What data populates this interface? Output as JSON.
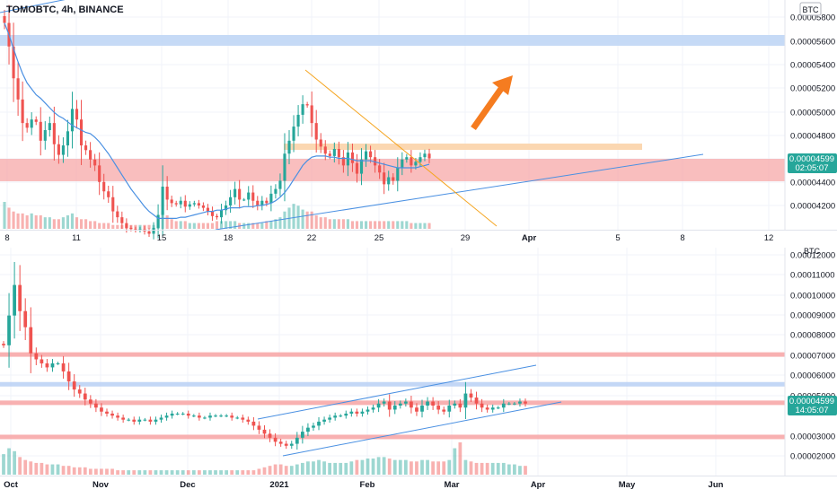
{
  "header": {
    "symbol_label": "TOMOBTC, 4h, BINANCE"
  },
  "top_panel": {
    "unit_badge": "BTC",
    "price_axis": [
      "0.00005800",
      "0.00005600",
      "0.00005400",
      "0.00005200",
      "0.00005000",
      "0.00004800",
      "0.00004600",
      "0.00004400",
      "0.00004200"
    ],
    "time_axis": [
      "8",
      "11",
      "15",
      "18",
      "22",
      "25",
      "29",
      "Apr",
      "5",
      "8",
      "12"
    ],
    "last_price": "0.00004599",
    "countdown": "02:05:07"
  },
  "bottom_panel": {
    "unit_badge": "BTC",
    "price_axis": [
      "0.00012000",
      "0.00011000",
      "0.00010000",
      "0.00009000",
      "0.00008000",
      "0.00007000",
      "0.00006000",
      "0.00005000",
      "0.00003000",
      "0.00002000"
    ],
    "time_axis": [
      "Oct",
      "Nov",
      "Dec",
      "2021",
      "Feb",
      "Mar",
      "Apr",
      "May",
      "Jun"
    ],
    "last_price": "0.00004599",
    "countdown": "14:05:07"
  },
  "colors": {
    "up": "#26a69a",
    "down": "#ef5350",
    "sma": "#4a90e2",
    "resistance_band": "#bcd3f5",
    "support_band": "#f7a8a8",
    "orange_band": "#fbd5ad",
    "orange_arrow": "#f57c20",
    "price_tag": "#26a69a"
  },
  "chart_data": [
    {
      "type": "candlestick",
      "title": "TOMOBTC, 4h, BINANCE",
      "x_tick_labels": [
        "8",
        "11",
        "15",
        "18",
        "22",
        "25",
        "29",
        "Apr",
        "5",
        "8",
        "12"
      ],
      "ylim": [
        4e-05,
        5.95e-05
      ],
      "zones": [
        {
          "kind": "resistance",
          "from": 5.61e-05,
          "to": 5.7e-05
        },
        {
          "kind": "support",
          "from": 4.41e-05,
          "to": 4.61e-05
        },
        {
          "kind": "orange",
          "from": 4.7e-05,
          "to": 4.75e-05
        }
      ],
      "close": [
        5.75e-05,
        5.55e-05,
        5.28e-05,
        5.1e-05,
        4.9e-05,
        4.86e-05,
        4.93e-05,
        4.91e-05,
        4.75e-05,
        4.84e-05,
        4.9e-05,
        4.72e-05,
        4.63e-05,
        4.71e-05,
        4.83e-05,
        5.02e-05,
        4.93e-05,
        4.71e-05,
        4.67e-05,
        4.59e-05,
        4.54e-05,
        4.4e-05,
        4.32e-05,
        4.27e-05,
        4.15e-05,
        4.1e-05,
        4.05e-05,
        4.01e-05,
        4e-05,
        3.99e-05,
        4e-05,
        3.98e-05,
        3.96e-05,
        4.01e-05,
        4.12e-05,
        4.36e-05,
        4.25e-05,
        4.22e-05,
        4.21e-05,
        4.24e-05,
        4.19e-05,
        4.21e-05,
        4.22e-05,
        4.2e-05,
        4.18e-05,
        4.15e-05,
        4.11e-05,
        4.1e-05,
        4.16e-05,
        4.2e-05,
        4.27e-05,
        4.34e-05,
        4.25e-05,
        4.25e-05,
        4.31e-05,
        4.24e-05,
        4.2e-05,
        4.24e-05,
        4.22e-05,
        4.3e-05,
        4.34e-05,
        4.41e-05,
        4.64e-05,
        4.75e-05,
        4.87e-05,
        4.97e-05,
        5.06e-05,
        5.05e-05,
        4.9e-05,
        4.76e-05,
        4.7e-05,
        4.64e-05,
        4.62e-05,
        4.68e-05,
        4.61e-05,
        4.54e-05,
        4.65e-05,
        4.56e-05,
        4.47e-05,
        4.59e-05,
        4.66e-05,
        4.61e-05,
        4.54e-05,
        4.48e-05,
        4.38e-05,
        4.44e-05,
        4.41e-05,
        4.52e-05,
        4.59e-05,
        4.61e-05,
        4.54e-05,
        4.57e-05,
        4.61e-05,
        4.64e-05,
        4.6e-05
      ],
      "volume": [
        14,
        11,
        9,
        8,
        8,
        7,
        8,
        7,
        7,
        6,
        6,
        5,
        5,
        6,
        7,
        8,
        6,
        5,
        5,
        4,
        4,
        3,
        3,
        3,
        2,
        2,
        2,
        2,
        2,
        2,
        2,
        2,
        2,
        2,
        6,
        9,
        7,
        5,
        4,
        4,
        4,
        3,
        3,
        3,
        3,
        3,
        3,
        4,
        4,
        4,
        4,
        4,
        3,
        3,
        3,
        3,
        3,
        3,
        4,
        4,
        5,
        6,
        9,
        11,
        13,
        12,
        10,
        9,
        9,
        7,
        6,
        6,
        5,
        5,
        5,
        5,
        5,
        4,
        4,
        4,
        4,
        4,
        4,
        4,
        4,
        4,
        4,
        4,
        4,
        4,
        3,
        3,
        3,
        3,
        3
      ],
      "sma": [
        5.75e-05,
        5.65e-05,
        5.53e-05,
        5.42e-05,
        5.32e-05,
        5.24e-05,
        5.19e-05,
        5.14e-05,
        5.11e-05,
        5.07e-05,
        5.03e-05,
        4.99e-05,
        4.96e-05,
        4.94e-05,
        4.91e-05,
        4.88e-05,
        4.86e-05,
        4.84e-05,
        4.82e-05,
        4.81e-05,
        4.78e-05,
        4.74e-05,
        4.69e-05,
        4.64e-05,
        4.58e-05,
        4.52e-05,
        4.46e-05,
        4.4e-05,
        4.34e-05,
        4.29e-05,
        4.24e-05,
        4.19e-05,
        4.15e-05,
        4.12e-05,
        4.09e-05,
        4.09e-05,
        4.09e-05,
        4.09e-05,
        4.09e-05,
        4.1e-05,
        4.1e-05,
        4.11e-05,
        4.12e-05,
        4.13e-05,
        4.14e-05,
        4.15e-05,
        4.15e-05,
        4.16e-05,
        4.16e-05,
        4.17e-05,
        4.18e-05,
        4.18e-05,
        4.18e-05,
        4.19e-05,
        4.19e-05,
        4.19e-05,
        4.2e-05,
        4.2e-05,
        4.21e-05,
        4.22e-05,
        4.24e-05,
        4.27e-05,
        4.31e-05,
        4.36e-05,
        4.42e-05,
        4.48e-05,
        4.54e-05,
        4.58e-05,
        4.61e-05,
        4.62e-05,
        4.62e-05,
        4.62e-05,
        4.61e-05,
        4.61e-05,
        4.6e-05,
        4.6e-05,
        4.6e-05,
        4.59e-05,
        4.58e-05,
        4.58e-05,
        4.58e-05,
        4.58e-05,
        4.57e-05,
        4.56e-05,
        4.55e-05,
        4.54e-05,
        4.53e-05,
        4.52e-05,
        4.52e-05,
        4.52e-05,
        4.52e-05,
        4.52e-05,
        4.53e-05,
        4.54e-05,
        4.55e-05
      ],
      "last_price": 4.599e-05
    },
    {
      "type": "candlestick",
      "x_tick_labels": [
        "Oct",
        "Nov",
        "Dec",
        "2021",
        "Feb",
        "Mar",
        "Apr",
        "May",
        "Jun"
      ],
      "ylim": [
        1.5e-05,
        0.000122
      ],
      "zones": [
        {
          "kind": "support",
          "value": 7.04e-05
        },
        {
          "kind": "resistance",
          "value": 5.56e-05
        },
        {
          "kind": "support",
          "value": 4.64e-05
        },
        {
          "kind": "support",
          "value": 2.94e-05
        }
      ],
      "close": [
        7.5e-05,
        8.98e-05,
        0.000105,
        9.2e-05,
        8.4e-05,
        7.1e-05,
        6.8e-05,
        6.6e-05,
        6.4e-05,
        6.6e-05,
        6.6e-05,
        6.2e-05,
        5.7e-05,
        5.3e-05,
        5.1e-05,
        4.8e-05,
        4.6e-05,
        4.4e-05,
        4.2e-05,
        4.1e-05,
        4e-05,
        3.9e-05,
        3.8e-05,
        3.8e-05,
        3.7e-05,
        3.8e-05,
        3.8e-05,
        3.7e-05,
        3.8e-05,
        3.9e-05,
        4e-05,
        4.1e-05,
        4.1e-05,
        4.1e-05,
        4e-05,
        4e-05,
        3.9e-05,
        3.9e-05,
        4e-05,
        4e-05,
        4e-05,
        4e-05,
        3.9e-05,
        3.9e-05,
        3.8e-05,
        3.7e-05,
        3.5e-05,
        3.3e-05,
        3.1e-05,
        2.9e-05,
        2.7e-05,
        2.6e-05,
        2.5e-05,
        2.6e-05,
        2.9e-05,
        3.2e-05,
        3.4e-05,
        3.5e-05,
        3.7e-05,
        3.8e-05,
        3.9e-05,
        4e-05,
        4e-05,
        4.1e-05,
        4.2e-05,
        4.1e-05,
        4.2e-05,
        4.3e-05,
        4.4e-05,
        4.6e-05,
        4.7e-05,
        4.3e-05,
        4.5e-05,
        4.6e-05,
        4.7e-05,
        4.4e-05,
        4.2e-05,
        4.5e-05,
        4.7e-05,
        4.5e-05,
        4.3e-05,
        4.2e-05,
        4.5e-05,
        4.6e-05,
        4.4e-05,
        5.1e-05,
        4.9e-05,
        4.6e-05,
        4.4e-05,
        4.3e-05,
        4.4e-05,
        4.4e-05,
        4.6e-05,
        4.6e-05,
        4.6e-05,
        4.7e-05,
        4.6e-05
      ],
      "volume": [
        14,
        18,
        16,
        12,
        10,
        9,
        8,
        8,
        7,
        7,
        7,
        6,
        6,
        5,
        5,
        5,
        4,
        4,
        4,
        4,
        4,
        3,
        3,
        3,
        3,
        3,
        3,
        3,
        3,
        3,
        3,
        3,
        3,
        3,
        3,
        3,
        3,
        3,
        3,
        3,
        3,
        3,
        3,
        3,
        3,
        3,
        3,
        4,
        5,
        6,
        7,
        7,
        6,
        6,
        7,
        8,
        9,
        9,
        10,
        9,
        8,
        8,
        8,
        8,
        9,
        10,
        10,
        11,
        11,
        12,
        12,
        11,
        10,
        10,
        10,
        9,
        9,
        10,
        10,
        9,
        9,
        9,
        10,
        18,
        22,
        10,
        9,
        8,
        8,
        8,
        8,
        8,
        8,
        7,
        7,
        6,
        6
      ],
      "last_price": 4.599e-05
    }
  ]
}
